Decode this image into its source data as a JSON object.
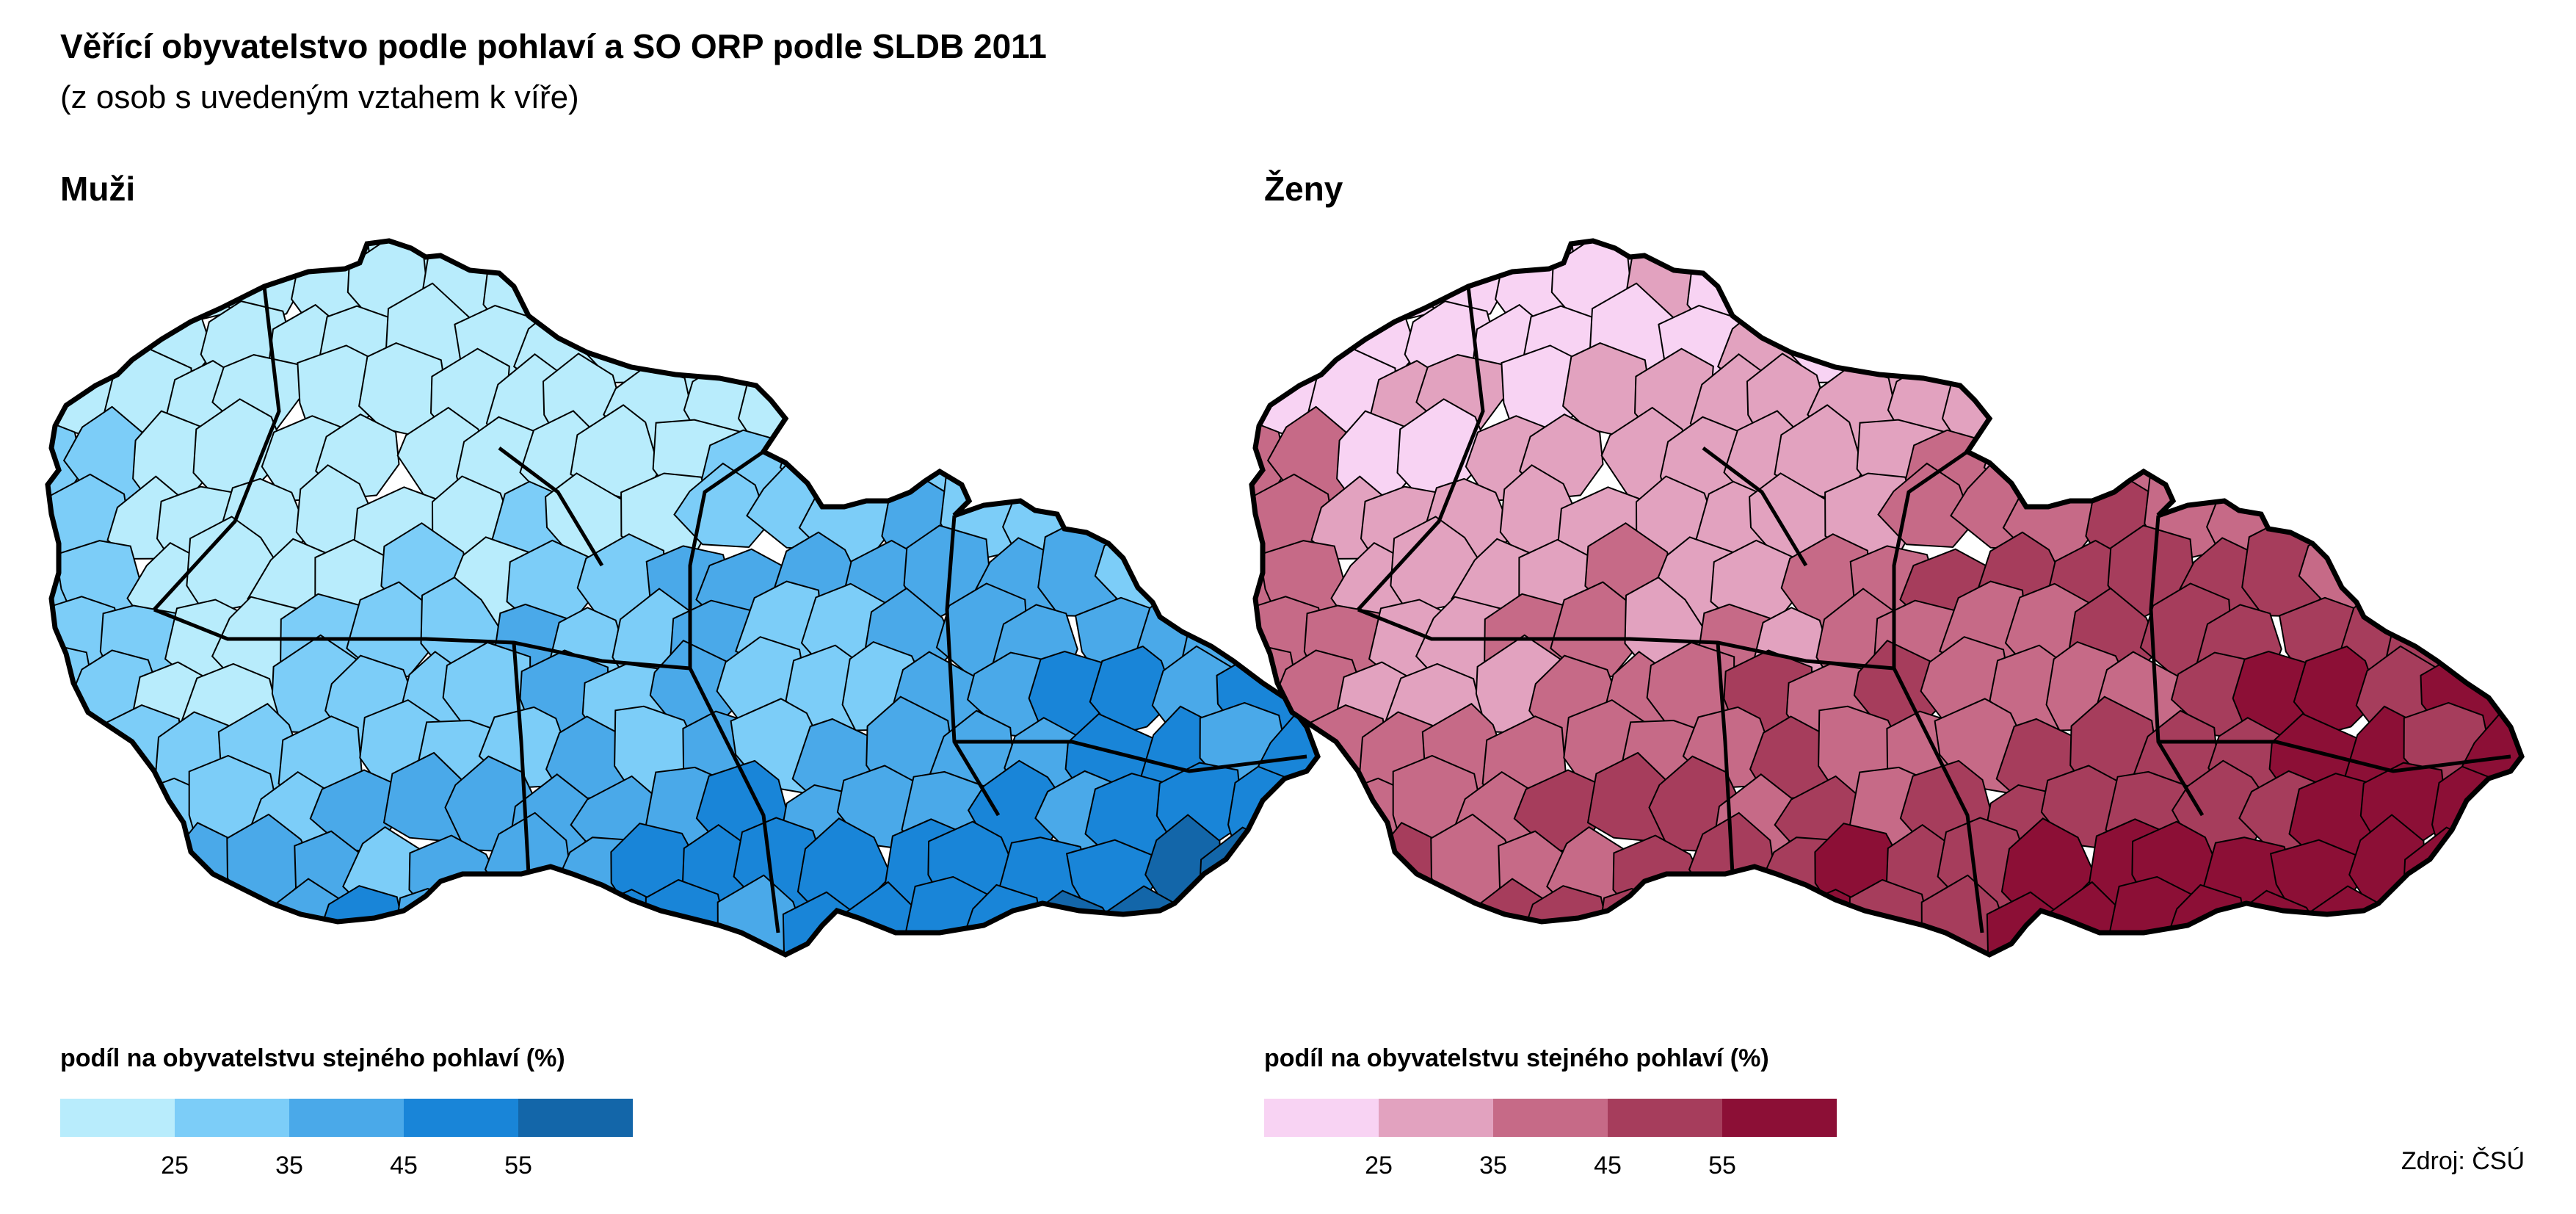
{
  "title": "Věřící obyvatelstvo podle pohlaví a SO ORP podle SLDB 2011",
  "subtitle": "(z osob s uvedeným vztahem k víře)",
  "panels": {
    "muzi": {
      "title": "Muži",
      "legend_title": "podíl na obyvatelstvu stejného pohlaví (%)",
      "colors": [
        "#b8ecfc",
        "#7ccdf8",
        "#4aa9e9",
        "#1985d8",
        "#1366a9"
      ]
    },
    "zeny": {
      "title": "Ženy",
      "legend_title": "podíl na obyvatelstvu stejného pohlaví (%)",
      "colors": [
        "#f8d3f3",
        "#e2a2bf",
        "#c66a87",
        "#a63d5c",
        "#8c0f36"
      ]
    }
  },
  "legend": {
    "ticks": [
      "25",
      "35",
      "45",
      "55"
    ],
    "breaks": [
      25,
      35,
      45,
      55
    ]
  },
  "source": "Zdroj: ČSÚ"
}
